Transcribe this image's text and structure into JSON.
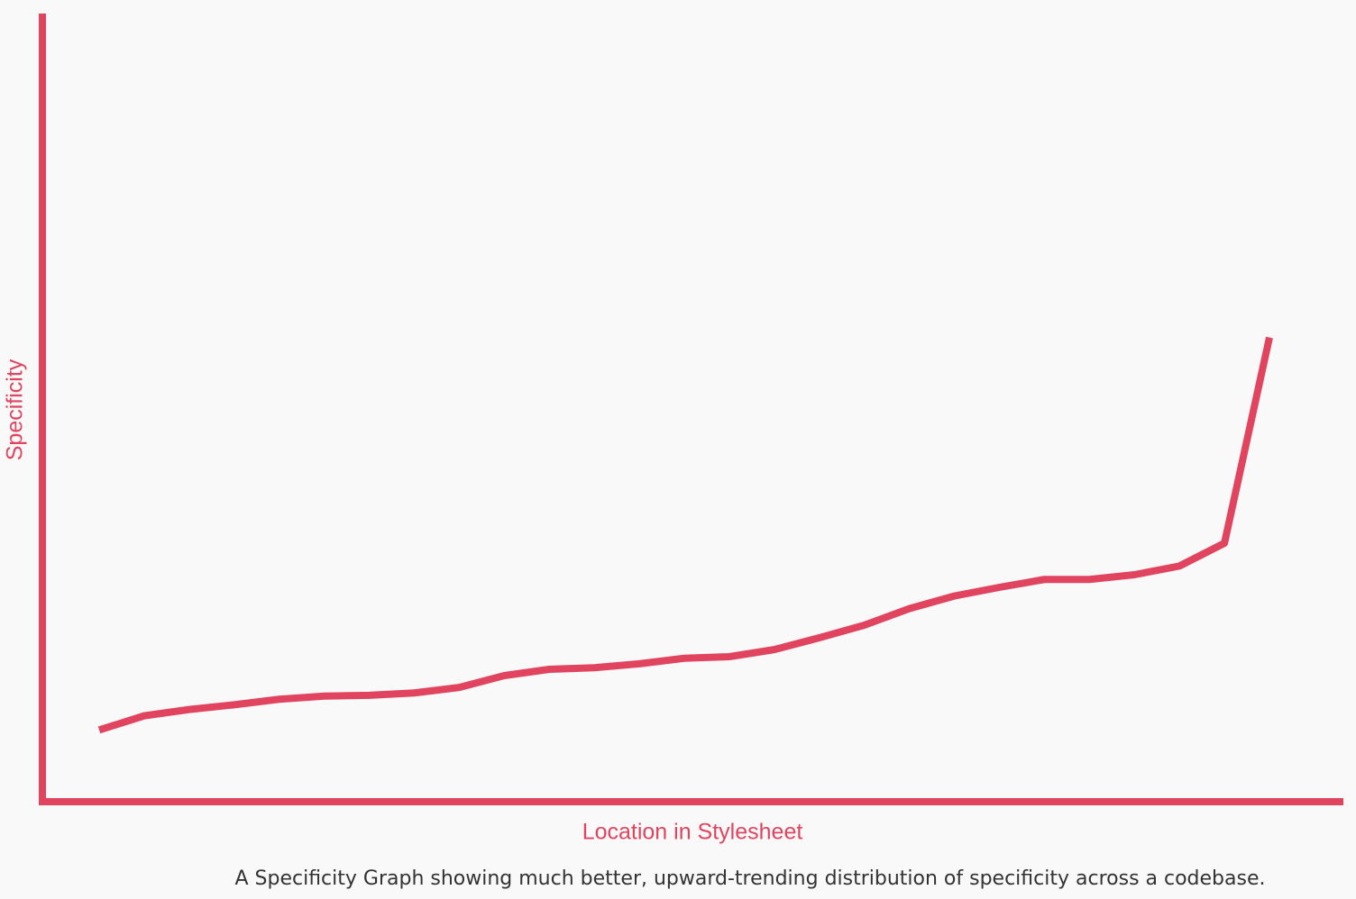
{
  "chart_data": {
    "type": "line",
    "xlabel": "Location in Stylesheet",
    "ylabel": "Specificity",
    "caption": "A Specificity Graph showing much better, upward-trending distribution of specificity across a codebase.",
    "color": "#e0445f",
    "ylim": [
      0,
      100
    ],
    "values": [
      9.1,
      10.9,
      11.7,
      12.3,
      13.0,
      13.4,
      13.5,
      13.8,
      14.5,
      16.0,
      16.8,
      17.0,
      17.5,
      18.2,
      18.4,
      19.3,
      20.8,
      22.4,
      24.5,
      26.1,
      27.2,
      28.2,
      28.2,
      28.8,
      29.9,
      32.8,
      58.9
    ]
  }
}
